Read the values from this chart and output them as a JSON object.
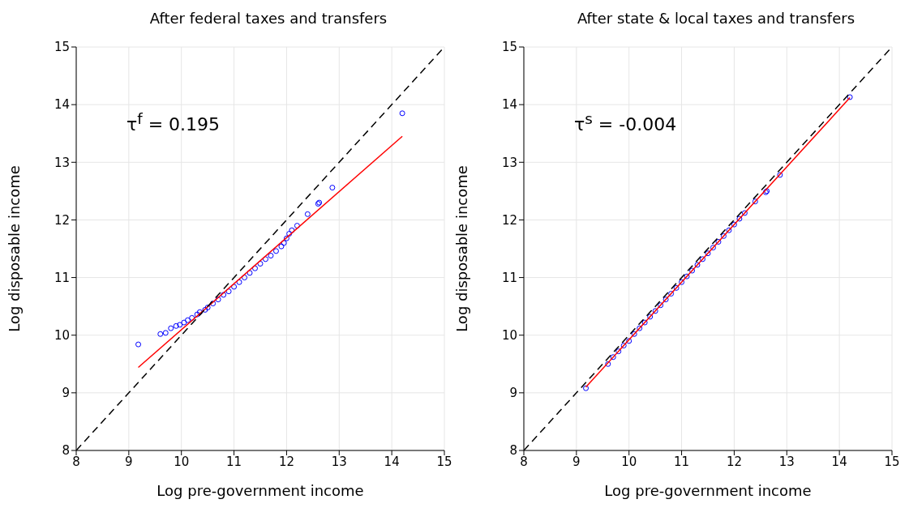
{
  "chart_data": [
    {
      "type": "scatter",
      "title": "After federal taxes and transfers",
      "xlabel": "Log pre-government income",
      "ylabel": "Log disposable income",
      "xlim": [
        8,
        15
      ],
      "xticks": [
        8,
        9,
        10,
        11,
        12,
        13,
        14,
        15
      ],
      "ylim": [
        8,
        15
      ],
      "yticks": [
        8,
        9,
        10,
        11,
        12,
        13,
        14,
        15
      ],
      "grid": true,
      "legend": false,
      "annotations": [
        "τ$^{f}$ = 0.195"
      ],
      "series": [
        {
          "type": "scatter",
          "marker": "circle",
          "color": "#0000ff",
          "x": [
            9.18,
            9.6,
            9.7,
            9.8,
            9.9,
            9.97,
            10.05,
            10.12,
            10.2,
            10.3,
            10.35,
            10.45,
            10.5,
            10.6,
            10.7,
            10.8,
            10.9,
            11.0,
            11.1,
            11.2,
            11.3,
            11.4,
            11.5,
            11.6,
            11.7,
            11.8,
            11.9,
            11.95,
            12.0,
            12.05,
            12.1,
            12.2,
            12.4,
            12.6,
            12.62,
            12.87,
            14.2
          ],
          "values": [
            9.84,
            10.02,
            10.04,
            10.12,
            10.16,
            10.18,
            10.22,
            10.26,
            10.3,
            10.36,
            10.4,
            10.44,
            10.48,
            10.55,
            10.62,
            10.7,
            10.76,
            10.84,
            10.92,
            11.0,
            11.08,
            11.16,
            11.24,
            11.32,
            11.38,
            11.46,
            11.54,
            11.6,
            11.68,
            11.76,
            11.82,
            11.9,
            12.1,
            12.28,
            12.3,
            12.56,
            13.85
          ]
        },
        {
          "type": "line",
          "marker": "none",
          "line_style": "solid",
          "color": "#ff0000",
          "x": [
            9.18,
            14.2
          ],
          "values": [
            9.44,
            13.45
          ]
        },
        {
          "type": "line",
          "marker": "none",
          "line_style": "dashed",
          "color": "#000000",
          "x": [
            8,
            15
          ],
          "values": [
            8,
            15
          ]
        }
      ]
    },
    {
      "type": "scatter",
      "title": "After state & local taxes and transfers",
      "xlabel": "Log pre-government income",
      "ylabel": "Log disposable income",
      "xlim": [
        8,
        15
      ],
      "xticks": [
        8,
        9,
        10,
        11,
        12,
        13,
        14,
        15
      ],
      "ylim": [
        8,
        15
      ],
      "yticks": [
        8,
        9,
        10,
        11,
        12,
        13,
        14,
        15
      ],
      "grid": true,
      "legend": false,
      "annotations": [
        "τ$^{s}$ = -0.004"
      ],
      "series": [
        {
          "type": "scatter",
          "marker": "circle",
          "color": "#0000ff",
          "x": [
            9.18,
            9.6,
            9.7,
            9.8,
            9.9,
            10.0,
            10.1,
            10.2,
            10.3,
            10.4,
            10.5,
            10.6,
            10.7,
            10.8,
            10.9,
            11.0,
            11.1,
            11.2,
            11.3,
            11.4,
            11.5,
            11.6,
            11.7,
            11.8,
            11.9,
            12.0,
            12.1,
            12.2,
            12.4,
            12.6,
            12.62,
            12.87,
            14.2
          ],
          "values": [
            9.08,
            9.5,
            9.62,
            9.72,
            9.82,
            9.9,
            10.02,
            10.12,
            10.22,
            10.32,
            10.42,
            10.52,
            10.62,
            10.72,
            10.82,
            10.92,
            11.02,
            11.12,
            11.22,
            11.32,
            11.42,
            11.52,
            11.62,
            11.72,
            11.82,
            11.92,
            12.02,
            12.12,
            12.32,
            12.48,
            12.5,
            12.78,
            14.13
          ]
        },
        {
          "type": "line",
          "marker": "none",
          "line_style": "solid",
          "color": "#ff0000",
          "x": [
            9.18,
            14.2
          ],
          "values": [
            9.1,
            14.12
          ]
        },
        {
          "type": "line",
          "marker": "none",
          "line_style": "dashed",
          "color": "#000000",
          "x": [
            8,
            15
          ],
          "values": [
            8,
            15
          ]
        }
      ]
    }
  ]
}
